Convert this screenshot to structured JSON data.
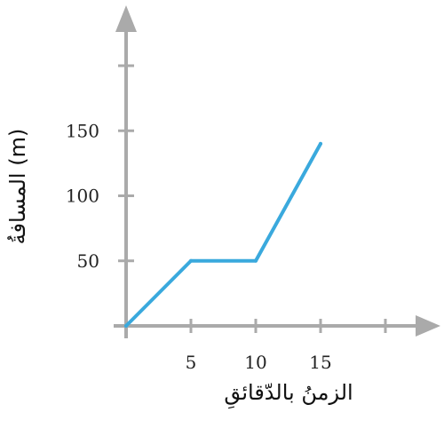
{
  "chart_data": {
    "type": "line",
    "xlabel": "الزمنُ بالدّقائقِ",
    "ylabel": "المسافةُ (m)",
    "x_ticks": [
      5,
      10,
      15
    ],
    "y_ticks": [
      50,
      100,
      150
    ],
    "xlim": [
      0,
      20
    ],
    "ylim": [
      0,
      200
    ],
    "grid": false,
    "series": [
      {
        "points": [
          [
            0,
            0
          ],
          [
            5,
            50
          ],
          [
            10,
            50
          ],
          [
            15,
            140
          ]
        ]
      }
    ],
    "colors": {
      "axis": "#aaaaaa",
      "line": "#3aa9dd",
      "text": "#222222"
    }
  }
}
